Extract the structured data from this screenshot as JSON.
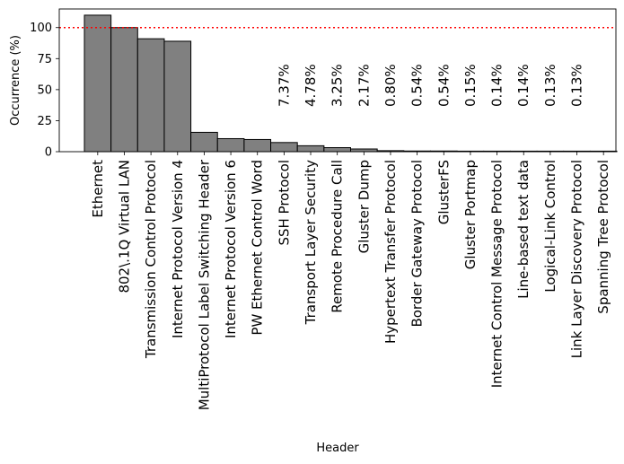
{
  "chart_data": {
    "type": "bar",
    "title": "",
    "xlabel": "Header",
    "ylabel": "Occurrence (%)",
    "ylim": [
      0,
      115
    ],
    "yticks": [
      0,
      25,
      50,
      75,
      100
    ],
    "grid": false,
    "bar_color": "#808080",
    "edge_color": "#000000",
    "reference_line": {
      "value": 100,
      "color": "#ff0000",
      "style": "dotted"
    },
    "categories": [
      "Ethernet",
      "802\\.1Q Virtual LAN",
      "Transmission Control Protocol",
      "Internet Protocol Version 4",
      "MultiProtocol Label Switching Header",
      "Internet Protocol Version 6",
      "PW Ethernet Control Word",
      "SSH Protocol",
      "Transport Layer Security",
      "Remote Procedure Call",
      "Gluster Dump",
      "Hypertext Transfer Protocol",
      "Border Gateway Protocol",
      "GlusterFS",
      "Gluster Portmap",
      "Internet Control Message Protocol",
      "Line-based text data",
      "Logical-Link Control",
      "Link Layer Discovery Protocol",
      "Spanning Tree Protocol"
    ],
    "values": [
      110,
      100,
      91,
      89,
      15.6,
      10.5,
      9.8,
      7.37,
      4.78,
      3.25,
      2.17,
      0.8,
      0.54,
      0.54,
      0.15,
      0.14,
      0.14,
      0.13,
      0.13,
      0.0
    ],
    "annotations": [
      {
        "category_index": 7,
        "text": "7.37%"
      },
      {
        "category_index": 8,
        "text": "4.78%"
      },
      {
        "category_index": 9,
        "text": "3.25%"
      },
      {
        "category_index": 10,
        "text": "2.17%"
      },
      {
        "category_index": 11,
        "text": "0.80%"
      },
      {
        "category_index": 12,
        "text": "0.54%"
      },
      {
        "category_index": 13,
        "text": "0.54%"
      },
      {
        "category_index": 14,
        "text": "0.15%"
      },
      {
        "category_index": 15,
        "text": "0.14%"
      },
      {
        "category_index": 16,
        "text": "0.14%"
      },
      {
        "category_index": 17,
        "text": "0.13%"
      },
      {
        "category_index": 18,
        "text": "0.13%"
      }
    ]
  }
}
